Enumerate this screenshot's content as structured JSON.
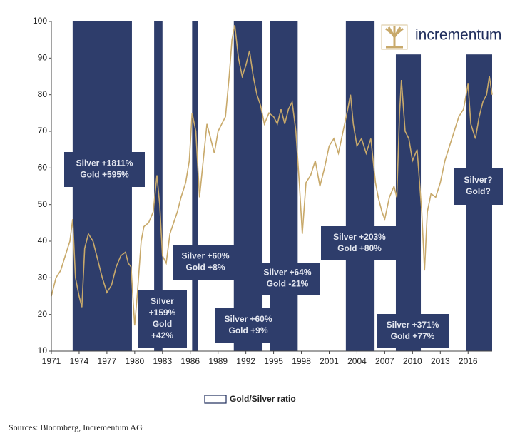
{
  "chart_data": {
    "type": "line",
    "logo_text": "incrementum",
    "source": "Sources: Bloomberg, Incrementum AG",
    "xlim": [
      1971,
      2018.6
    ],
    "ylim": [
      10,
      100
    ],
    "xticks": [
      1971,
      1974,
      1977,
      1980,
      1983,
      1986,
      1989,
      1992,
      1995,
      1998,
      2001,
      2004,
      2007,
      2010,
      2013,
      2016
    ],
    "yticks": [
      10,
      20,
      30,
      40,
      50,
      60,
      70,
      80,
      90,
      100
    ],
    "band_color": "#2e3d6b",
    "periods": [
      {
        "start": 1973.3,
        "end": 1979.7,
        "top": 100
      },
      {
        "start": 1982.1,
        "end": 1983.0,
        "top": 100
      },
      {
        "start": 1986.2,
        "end": 1986.8,
        "top": 100
      },
      {
        "start": 1990.7,
        "end": 1993.8,
        "top": 100
      },
      {
        "start": 1994.6,
        "end": 1997.6,
        "top": 100
      },
      {
        "start": 2002.8,
        "end": 2005.9,
        "top": 100
      },
      {
        "start": 2008.2,
        "end": 2010.9,
        "top": 91
      },
      {
        "start": 2015.8,
        "end": 2018.6,
        "top": 91
      }
    ],
    "annotations": [
      {
        "lines": [
          "Silver +1811%",
          "Gold +595%"
        ]
      },
      {
        "lines": [
          "Silver",
          "+159%",
          "Gold",
          "+42%"
        ]
      },
      {
        "lines": [
          "Silver +60%",
          "Gold +8%"
        ]
      },
      {
        "lines": [
          "Silver +60%",
          "Gold +9%"
        ]
      },
      {
        "lines": [
          "Silver +64%",
          "Gold -21%"
        ]
      },
      {
        "lines": [
          "Silver +203%",
          "Gold +80%"
        ]
      },
      {
        "lines": [
          "Silver +371%",
          "Gold +77%"
        ]
      },
      {
        "lines": [
          "Silver?",
          "Gold?"
        ]
      }
    ],
    "x": [
      1971.0,
      1971.5,
      1972.0,
      1972.5,
      1973.0,
      1973.3,
      1973.6,
      1974.0,
      1974.3,
      1974.6,
      1975.0,
      1975.5,
      1976.0,
      1976.5,
      1977.0,
      1977.5,
      1978.0,
      1978.5,
      1979.0,
      1979.3,
      1979.6,
      1980.0,
      1980.3,
      1980.7,
      1981.0,
      1981.5,
      1982.0,
      1982.4,
      1982.7,
      1983.0,
      1983.4,
      1983.8,
      1984.2,
      1984.6,
      1985.0,
      1985.5,
      1985.9,
      1986.2,
      1986.6,
      1987.0,
      1987.4,
      1987.8,
      1988.2,
      1988.6,
      1989.0,
      1989.4,
      1989.8,
      1990.2,
      1990.5,
      1990.8,
      1991.2,
      1991.6,
      1992.0,
      1992.4,
      1992.8,
      1993.2,
      1993.6,
      1994.0,
      1994.5,
      1995.0,
      1995.4,
      1995.8,
      1996.2,
      1996.6,
      1997.0,
      1997.4,
      1997.8,
      1998.1,
      1998.5,
      1999.0,
      1999.5,
      2000.0,
      2000.5,
      2001.0,
      2001.5,
      2002.0,
      2002.5,
      2003.0,
      2003.3,
      2003.6,
      2004.0,
      2004.5,
      2005.0,
      2005.5,
      2006.0,
      2006.3,
      2006.7,
      2007.0,
      2007.5,
      2008.0,
      2008.3,
      2008.6,
      2008.8,
      2009.2,
      2009.6,
      2010.0,
      2010.5,
      2011.0,
      2011.3,
      2011.6,
      2012.0,
      2012.5,
      2013.0,
      2013.5,
      2014.0,
      2014.5,
      2015.0,
      2015.5,
      2015.8,
      2016.0,
      2016.3,
      2016.8,
      2017.2,
      2017.6,
      2018.0,
      2018.3,
      2018.6
    ],
    "series": [
      {
        "name": "Gold/Silver ratio",
        "color": "#c8a96a",
        "values": [
          25,
          30,
          32,
          36,
          40,
          46,
          30,
          25,
          22,
          38,
          42,
          40,
          35,
          30,
          26,
          28,
          33,
          36,
          37,
          34,
          33,
          17,
          26,
          40,
          44,
          45,
          48,
          58,
          50,
          36,
          34,
          42,
          45,
          48,
          52,
          56,
          62,
          75,
          70,
          52,
          62,
          72,
          68,
          64,
          70,
          72,
          74,
          85,
          95,
          99,
          90,
          85,
          88,
          92,
          85,
          80,
          77,
          72,
          75,
          74,
          72,
          76,
          72,
          76,
          78,
          70,
          55,
          42,
          56,
          58,
          62,
          55,
          60,
          66,
          68,
          64,
          70,
          76,
          80,
          72,
          66,
          68,
          64,
          68,
          56,
          52,
          48,
          46,
          52,
          55,
          52,
          75,
          84,
          70,
          68,
          62,
          65,
          48,
          32,
          48,
          53,
          52,
          56,
          62,
          66,
          70,
          74,
          76,
          80,
          83,
          72,
          68,
          74,
          78,
          80,
          85,
          80
        ]
      }
    ]
  }
}
